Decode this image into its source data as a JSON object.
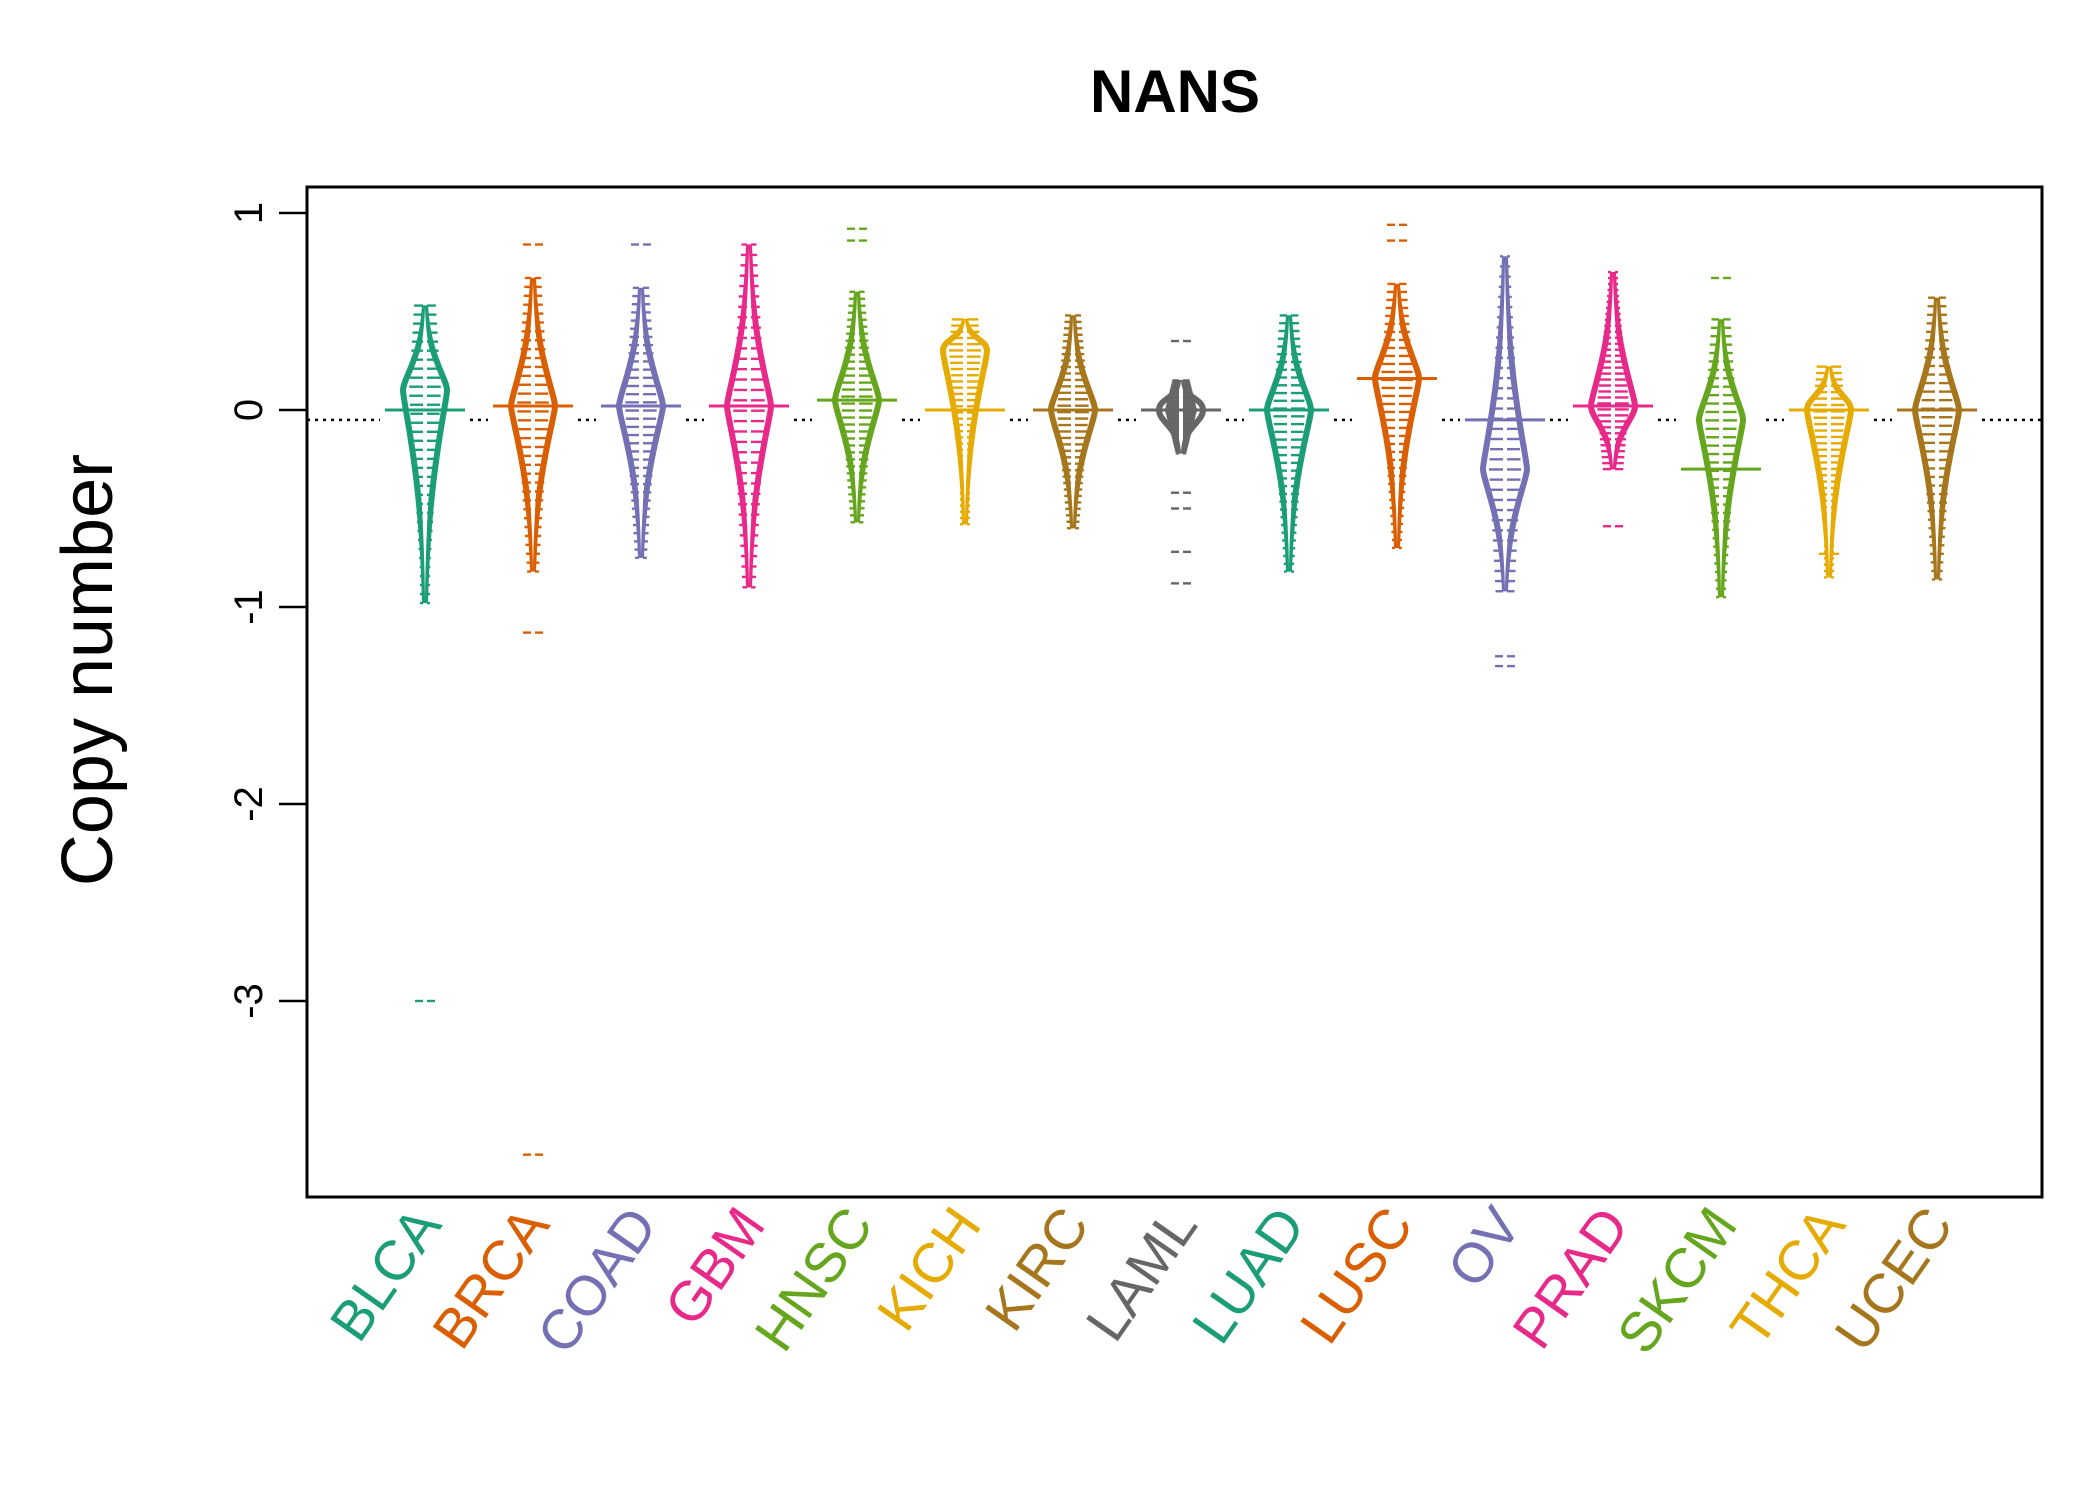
{
  "chart_data": {
    "type": "beanplot",
    "title": "NANS",
    "xlabel": "",
    "ylabel": "Copy number",
    "ylim": [
      -3.9,
      1.1
    ],
    "yticks": [
      1,
      0,
      -1,
      -2,
      -3
    ],
    "ytick_labels": [
      "1",
      "0",
      "-1",
      "-2",
      "-3"
    ],
    "overall_reference_line": -0.05,
    "categories": [
      "BLCA",
      "BRCA",
      "COAD",
      "GBM",
      "HNSC",
      "KICH",
      "KIRC",
      "LAML",
      "LUAD",
      "LUSC",
      "OV",
      "PRAD",
      "SKCM",
      "THCA",
      "UCEC"
    ],
    "colors": [
      "#1B9E77",
      "#D95F02",
      "#7570B3",
      "#E7298A",
      "#66A61E",
      "#E6AB02",
      "#A6761D",
      "#666666",
      "#1B9E77",
      "#D95F02",
      "#7570B3",
      "#E7298A",
      "#66A61E",
      "#E6AB02",
      "#A6761D"
    ],
    "series": [
      {
        "name": "BLCA",
        "min": -0.98,
        "max": 0.53,
        "median": 0.0,
        "peak": 0.1,
        "outliers": [
          -3.0
        ]
      },
      {
        "name": "BRCA",
        "min": -0.82,
        "max": 0.67,
        "median": 0.02,
        "peak": 0.02,
        "outliers": [
          0.84,
          -1.13,
          -3.78
        ]
      },
      {
        "name": "COAD",
        "min": -0.75,
        "max": 0.62,
        "median": 0.02,
        "peak": 0.02,
        "outliers": [
          0.84
        ]
      },
      {
        "name": "GBM",
        "min": -0.9,
        "max": 0.84,
        "median": 0.02,
        "peak": 0.02,
        "outliers": []
      },
      {
        "name": "HNSC",
        "min": -0.57,
        "max": 0.6,
        "median": 0.05,
        "peak": 0.05,
        "outliers": [
          0.92,
          0.86
        ]
      },
      {
        "name": "KICH",
        "min": -0.58,
        "max": 0.46,
        "median": 0.0,
        "peak": 0.3,
        "outliers": []
      },
      {
        "name": "KIRC",
        "min": -0.6,
        "max": 0.48,
        "median": 0.0,
        "peak": 0.0,
        "outliers": []
      },
      {
        "name": "LAML",
        "min": -0.22,
        "max": 0.15,
        "median": 0.0,
        "peak": 0.0,
        "outliers": [
          0.35,
          -0.42,
          -0.5,
          -0.72,
          -0.88
        ]
      },
      {
        "name": "LUAD",
        "min": -0.82,
        "max": 0.48,
        "median": 0.0,
        "peak": 0.0,
        "outliers": []
      },
      {
        "name": "LUSC",
        "min": -0.7,
        "max": 0.64,
        "median": 0.16,
        "peak": 0.16,
        "outliers": [
          0.94,
          0.86
        ]
      },
      {
        "name": "OV",
        "min": -0.92,
        "max": 0.78,
        "median": -0.05,
        "peak": -0.3,
        "outliers": [
          -1.25,
          -1.3
        ]
      },
      {
        "name": "PRAD",
        "min": -0.3,
        "max": 0.7,
        "median": 0.02,
        "peak": 0.02,
        "outliers": [
          -0.59
        ]
      },
      {
        "name": "SKCM",
        "min": -0.95,
        "max": 0.46,
        "median": -0.3,
        "peak": -0.05,
        "outliers": [
          0.67
        ]
      },
      {
        "name": "THCA",
        "min": -0.85,
        "max": 0.22,
        "median": 0.0,
        "peak": 0.0,
        "outliers": [
          -0.73
        ]
      },
      {
        "name": "UCEC",
        "min": -0.86,
        "max": 0.57,
        "median": 0.0,
        "peak": 0.0,
        "outliers": []
      }
    ]
  }
}
